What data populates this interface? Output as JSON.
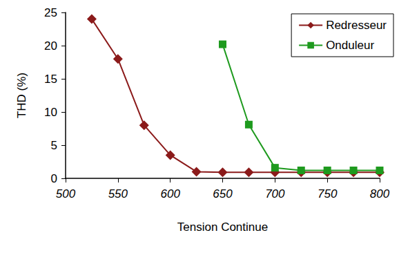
{
  "chart_data": {
    "type": "line",
    "x_label": "Tension Continue",
    "y_label": "THD (%)",
    "x": [
      525,
      550,
      575,
      600,
      625,
      650,
      675,
      700,
      725,
      750,
      775,
      800
    ],
    "series": [
      {
        "name": "Redresseur",
        "color": "#8B1A1A",
        "marker": "diamond",
        "values": [
          24,
          18,
          8,
          3.5,
          1,
          0.9,
          0.9,
          0.9,
          0.9,
          0.9,
          0.9,
          0.9
        ]
      },
      {
        "name": "Onduleur",
        "color": "#1E9A1E",
        "marker": "square",
        "values": [
          null,
          null,
          null,
          null,
          null,
          20.2,
          8.1,
          1.6,
          1.2,
          1.2,
          1.2,
          1.2
        ]
      }
    ],
    "xlim": [
      500,
      800
    ],
    "xticks": [
      500,
      550,
      600,
      650,
      700,
      750,
      800
    ],
    "ylim": [
      0,
      25
    ],
    "yticks": [
      0,
      5,
      10,
      15,
      20,
      25
    ],
    "grid": false,
    "legend": "upper right"
  }
}
